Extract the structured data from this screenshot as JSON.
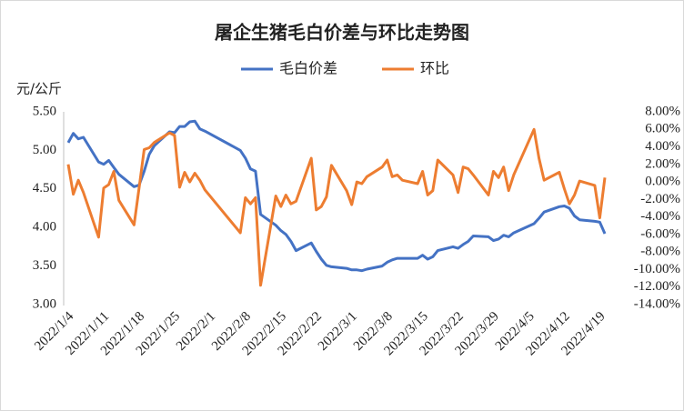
{
  "chart_data": {
    "type": "line",
    "title": "屠企生猪毛白价差与环比走势图",
    "y_label": "元/公斤",
    "x": [
      "2022/1/4",
      "2022/1/5",
      "2022/1/6",
      "2022/1/7",
      "2022/1/10",
      "2022/1/11",
      "2022/1/12",
      "2022/1/13",
      "2022/1/14",
      "2022/1/17",
      "2022/1/18",
      "2022/1/19",
      "2022/1/20",
      "2022/1/21",
      "2022/1/24",
      "2022/1/25",
      "2022/1/26",
      "2022/1/27",
      "2022/1/28",
      "2022/1/29",
      "2022/1/30",
      "2022/1/31",
      "2022/2/7",
      "2022/2/8",
      "2022/2/9",
      "2022/2/10",
      "2022/2/11",
      "2022/2/14",
      "2022/2/15",
      "2022/2/16",
      "2022/2/17",
      "2022/2/18",
      "2022/2/21",
      "2022/2/22",
      "2022/2/23",
      "2022/2/24",
      "2022/2/25",
      "2022/2/28",
      "2022/3/1",
      "2022/3/2",
      "2022/3/3",
      "2022/3/4",
      "2022/3/7",
      "2022/3/8",
      "2022/3/9",
      "2022/3/10",
      "2022/3/11",
      "2022/3/14",
      "2022/3/15",
      "2022/3/16",
      "2022/3/17",
      "2022/3/18",
      "2022/3/21",
      "2022/3/22",
      "2022/3/23",
      "2022/3/24",
      "2022/3/25",
      "2022/3/28",
      "2022/3/29",
      "2022/3/30",
      "2022/3/31",
      "2022/4/1",
      "2022/4/2",
      "2022/4/6",
      "2022/4/7",
      "2022/4/8",
      "2022/4/11",
      "2022/4/12",
      "2022/4/13",
      "2022/4/14",
      "2022/4/15",
      "2022/4/18",
      "2022/4/19",
      "2022/4/20"
    ],
    "xticks": [
      "2022/1/4",
      "2022/1/11",
      "2022/1/18",
      "2022/1/25",
      "2022/2/1",
      "2022/2/8",
      "2022/2/15",
      "2022/2/22",
      "2022/3/1",
      "2022/3/8",
      "2022/3/15",
      "2022/3/22",
      "2022/3/29",
      "2022/4/5",
      "2022/4/12",
      "2022/4/19"
    ],
    "series": [
      {
        "name": "毛白价差",
        "color": "#4472c4",
        "values": [
          5.1,
          5.22,
          5.15,
          5.17,
          4.85,
          4.82,
          4.87,
          4.78,
          4.69,
          4.53,
          4.55,
          4.73,
          4.95,
          5.06,
          5.24,
          5.23,
          5.31,
          5.31,
          5.37,
          5.38,
          5.28,
          5.25,
          5.0,
          4.9,
          4.76,
          4.73,
          4.17,
          4.03,
          3.96,
          3.91,
          3.82,
          3.7,
          3.8,
          3.69,
          3.59,
          3.51,
          3.49,
          3.47,
          3.45,
          3.45,
          3.44,
          3.46,
          3.5,
          3.55,
          3.58,
          3.6,
          3.6,
          3.6,
          3.64,
          3.59,
          3.62,
          3.7,
          3.75,
          3.73,
          3.78,
          3.82,
          3.89,
          3.88,
          3.83,
          3.85,
          3.9,
          3.88,
          3.93,
          4.05,
          4.12,
          4.2,
          4.27,
          4.28,
          4.25,
          4.15,
          4.1,
          4.08,
          4.07,
          3.92
        ]
      },
      {
        "name": "环比",
        "color": "#ed7d31",
        "axis": "y2",
        "values": [
          2.0,
          -1.4,
          0.2,
          -1.2,
          -6.3,
          -0.7,
          -0.3,
          1.2,
          -2.1,
          -4.9,
          -0.7,
          3.7,
          3.9,
          4.5,
          5.6,
          5.3,
          -0.6,
          1.1,
          0,
          1.0,
          0.2,
          -0.9,
          -5.8,
          -1.8,
          -2.5,
          -1.8,
          -11.8,
          -1.6,
          -2.8,
          -1.5,
          -2.5,
          -2.2,
          2.7,
          -3.2,
          -2.8,
          -1.7,
          1.9,
          -1.0,
          -2.6,
          0,
          -0.2,
          0.6,
          1.7,
          2.5,
          0.6,
          0.8,
          0.2,
          -0.2,
          1.2,
          -1.5,
          -1.0,
          2.5,
          0.8,
          -1.2,
          1.7,
          1.5,
          0.8,
          -1.5,
          1.2,
          0.5,
          1.7,
          -1.0,
          0.8,
          6.0,
          2.7,
          0.2,
          1.1,
          -0.8,
          -2.5,
          -1.5,
          0.1,
          -0.4,
          -4.1,
          0.5
        ]
      }
    ],
    "ylim": [
      3,
      5.5
    ],
    "yticks": [
      {
        "value": 3,
        "label": "3.00"
      },
      {
        "value": 3.5,
        "label": "3.50"
      },
      {
        "value": 4,
        "label": "4.00"
      },
      {
        "value": 4.5,
        "label": "4.50"
      },
      {
        "value": 5,
        "label": "5.00"
      },
      {
        "value": 5.5,
        "label": "5.50"
      }
    ],
    "y2lim": [
      -14,
      8
    ],
    "y2ticks": [
      {
        "value": -14,
        "label": "-14.00%"
      },
      {
        "value": -12,
        "label": "-12.00%"
      },
      {
        "value": -10,
        "label": "-10.00%"
      },
      {
        "value": -8,
        "label": "-8.00%"
      },
      {
        "value": -6,
        "label": "-6.00%"
      },
      {
        "value": -4,
        "label": "-4.00%"
      },
      {
        "value": -2,
        "label": "-2.00%"
      },
      {
        "value": 0,
        "label": "0.00%"
      },
      {
        "value": 2,
        "label": "2.00%"
      },
      {
        "value": 4,
        "label": "4.00%"
      },
      {
        "value": 6,
        "label": "6.00%"
      },
      {
        "value": 8,
        "label": "8.00%"
      }
    ],
    "legend": "top"
  }
}
